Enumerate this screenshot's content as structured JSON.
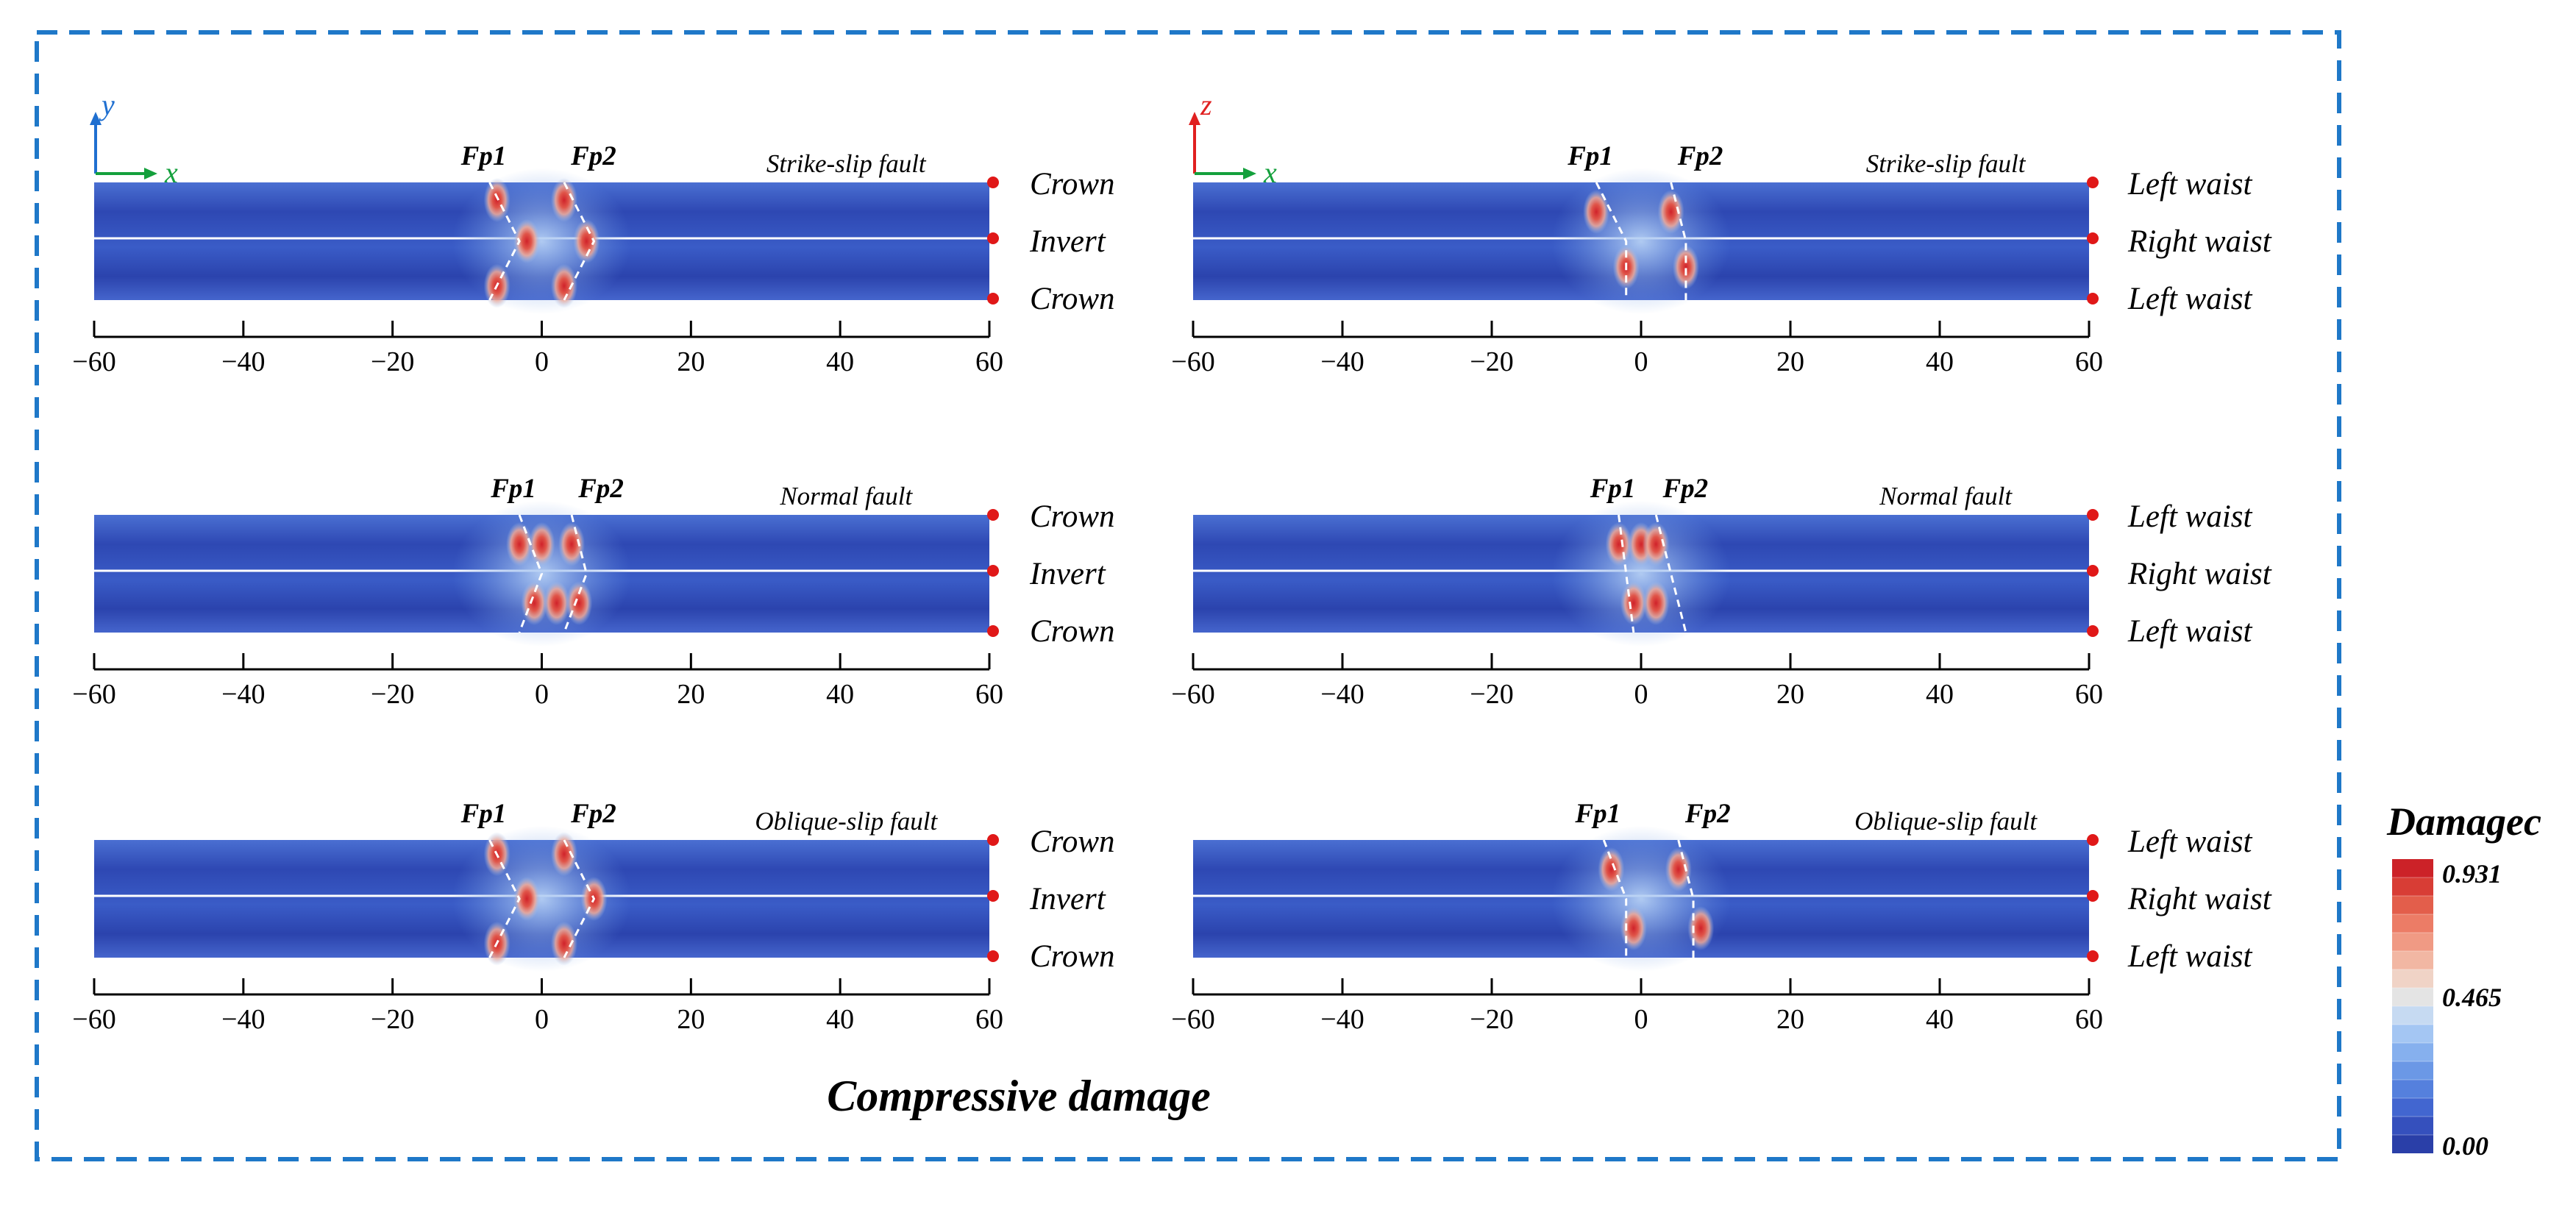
{
  "figure": {
    "title": "Compressive damage",
    "colorbar": {
      "title": "Damagec",
      "max_label": "0.931",
      "mid_label": "0.465",
      "min_label": "0.00",
      "colors": [
        "#2a3fa8",
        "#3550bd",
        "#4266d0",
        "#5580dd",
        "#6b98e6",
        "#86b0ee",
        "#a4c6f3",
        "#c6daf2",
        "#e4e4e4",
        "#f0d3c6",
        "#f2b7a3",
        "#f09a84",
        "#ec7c66",
        "#e35e4b",
        "#d83d35",
        "#cc2228"
      ]
    },
    "panels": [
      {
        "id": "p1",
        "col": 0,
        "fault": "Strike-slip fault",
        "axis_v": "y",
        "axis_h": "x",
        "axis_v_color": "#1f6fd0",
        "side_labels": [
          "Crown",
          "Invert",
          "Crown"
        ],
        "fp1": "Fp1",
        "fp2": "Fp2",
        "ticks": [
          "−60",
          "−40",
          "−20",
          "0",
          "20",
          "40",
          "60"
        ],
        "tick_values": [
          -60,
          -40,
          -20,
          0,
          20,
          40,
          60
        ],
        "damage_zones": [
          {
            "x": -6,
            "y": 0.15
          },
          {
            "x": 3,
            "y": 0.15
          },
          {
            "x": -2,
            "y": 0.5
          },
          {
            "x": 6,
            "y": 0.5
          },
          {
            "x": -6,
            "y": 0.88
          },
          {
            "x": 3,
            "y": 0.88
          }
        ],
        "fault_lines": [
          [
            [
              -7,
              0
            ],
            [
              -3,
              0.5
            ],
            [
              -7,
              1
            ]
          ],
          [
            [
              3,
              0
            ],
            [
              7,
              0.5
            ],
            [
              3,
              1
            ]
          ]
        ]
      },
      {
        "id": "p2",
        "col": 1,
        "fault": "Strike-slip fault",
        "axis_v": "z",
        "axis_h": "x",
        "axis_v_color": "#e02020",
        "side_labels": [
          "Left waist",
          "Right waist",
          "Left waist"
        ],
        "fp1": "Fp1",
        "fp2": "Fp2",
        "ticks": [
          "−60",
          "−40",
          "−20",
          "0",
          "20",
          "40",
          "60"
        ],
        "tick_values": [
          -60,
          -40,
          -20,
          0,
          20,
          40,
          60
        ],
        "damage_zones": [
          {
            "x": -6,
            "y": 0.25
          },
          {
            "x": 4,
            "y": 0.25
          },
          {
            "x": -2,
            "y": 0.72
          },
          {
            "x": 6,
            "y": 0.72
          }
        ],
        "fault_lines": [
          [
            [
              -6,
              0
            ],
            [
              -2,
              0.5
            ],
            [
              -2,
              1
            ]
          ],
          [
            [
              4,
              0
            ],
            [
              6,
              0.5
            ],
            [
              6,
              1
            ]
          ]
        ]
      },
      {
        "id": "p3",
        "col": 0,
        "fault": "Normal fault",
        "axis_v": "",
        "axis_h": "",
        "axis_v_color": "",
        "side_labels": [
          "Crown",
          "Invert",
          "Crown"
        ],
        "fp1": "Fp1",
        "fp2": "Fp2",
        "ticks": [
          "−60",
          "−40",
          "−20",
          "0",
          "20",
          "40",
          "60"
        ],
        "tick_values": [
          -60,
          -40,
          -20,
          0,
          20,
          40,
          60
        ],
        "damage_zones": [
          {
            "x": -3,
            "y": 0.25
          },
          {
            "x": 0,
            "y": 0.25
          },
          {
            "x": 4,
            "y": 0.25
          },
          {
            "x": -1,
            "y": 0.75
          },
          {
            "x": 2,
            "y": 0.75
          },
          {
            "x": 5,
            "y": 0.75
          }
        ],
        "fault_lines": [
          [
            [
              -3,
              0
            ],
            [
              0,
              0.5
            ],
            [
              -3,
              1
            ]
          ],
          [
            [
              4,
              0
            ],
            [
              6,
              0.5
            ],
            [
              3,
              1
            ]
          ]
        ]
      },
      {
        "id": "p4",
        "col": 1,
        "fault": "Normal fault",
        "axis_v": "",
        "axis_h": "",
        "axis_v_color": "",
        "side_labels": [
          "Left waist",
          "Right waist",
          "Left waist"
        ],
        "fp1": "Fp1",
        "fp2": "Fp2",
        "ticks": [
          "−60",
          "−40",
          "−20",
          "0",
          "20",
          "40",
          "60"
        ],
        "tick_values": [
          -60,
          -40,
          -20,
          0,
          20,
          40,
          60
        ],
        "damage_zones": [
          {
            "x": -3,
            "y": 0.25
          },
          {
            "x": 0,
            "y": 0.25
          },
          {
            "x": 2,
            "y": 0.25
          },
          {
            "x": -1,
            "y": 0.75
          },
          {
            "x": 2,
            "y": 0.75
          }
        ],
        "fault_lines": [
          [
            [
              -3,
              0
            ],
            [
              -2,
              0.5
            ],
            [
              -1,
              1
            ]
          ],
          [
            [
              2,
              0
            ],
            [
              4,
              0.5
            ],
            [
              6,
              1
            ]
          ]
        ]
      },
      {
        "id": "p5",
        "col": 0,
        "fault": "Oblique-slip fault",
        "axis_v": "",
        "axis_h": "",
        "axis_v_color": "",
        "side_labels": [
          "Crown",
          "Invert",
          "Crown"
        ],
        "fp1": "Fp1",
        "fp2": "Fp2",
        "ticks": [
          "−60",
          "−40",
          "−20",
          "0",
          "20",
          "40",
          "60"
        ],
        "tick_values": [
          -60,
          -40,
          -20,
          0,
          20,
          40,
          60
        ],
        "damage_zones": [
          {
            "x": -6,
            "y": 0.12
          },
          {
            "x": 3,
            "y": 0.12
          },
          {
            "x": -2,
            "y": 0.5
          },
          {
            "x": 7,
            "y": 0.5
          },
          {
            "x": -6,
            "y": 0.88
          },
          {
            "x": 3,
            "y": 0.88
          }
        ],
        "fault_lines": [
          [
            [
              -7,
              0
            ],
            [
              -3,
              0.5
            ],
            [
              -7,
              1
            ]
          ],
          [
            [
              3,
              0
            ],
            [
              7,
              0.5
            ],
            [
              3,
              1
            ]
          ]
        ]
      },
      {
        "id": "p6",
        "col": 1,
        "fault": "Oblique-slip fault",
        "axis_v": "",
        "axis_h": "",
        "axis_v_color": "",
        "side_labels": [
          "Left waist",
          "Right waist",
          "Left waist"
        ],
        "fp1": "Fp1",
        "fp2": "Fp2",
        "ticks": [
          "−60",
          "−40",
          "−20",
          "0",
          "20",
          "40",
          "60"
        ],
        "tick_values": [
          -60,
          -40,
          -20,
          0,
          20,
          40,
          60
        ],
        "damage_zones": [
          {
            "x": -4,
            "y": 0.25
          },
          {
            "x": 5,
            "y": 0.25
          },
          {
            "x": -1,
            "y": 0.75
          },
          {
            "x": 8,
            "y": 0.75
          }
        ],
        "fault_lines": [
          [
            [
              -5,
              0
            ],
            [
              -2,
              0.5
            ],
            [
              -2,
              1
            ]
          ],
          [
            [
              5,
              0
            ],
            [
              7,
              0.5
            ],
            [
              7,
              1
            ]
          ]
        ]
      }
    ]
  }
}
